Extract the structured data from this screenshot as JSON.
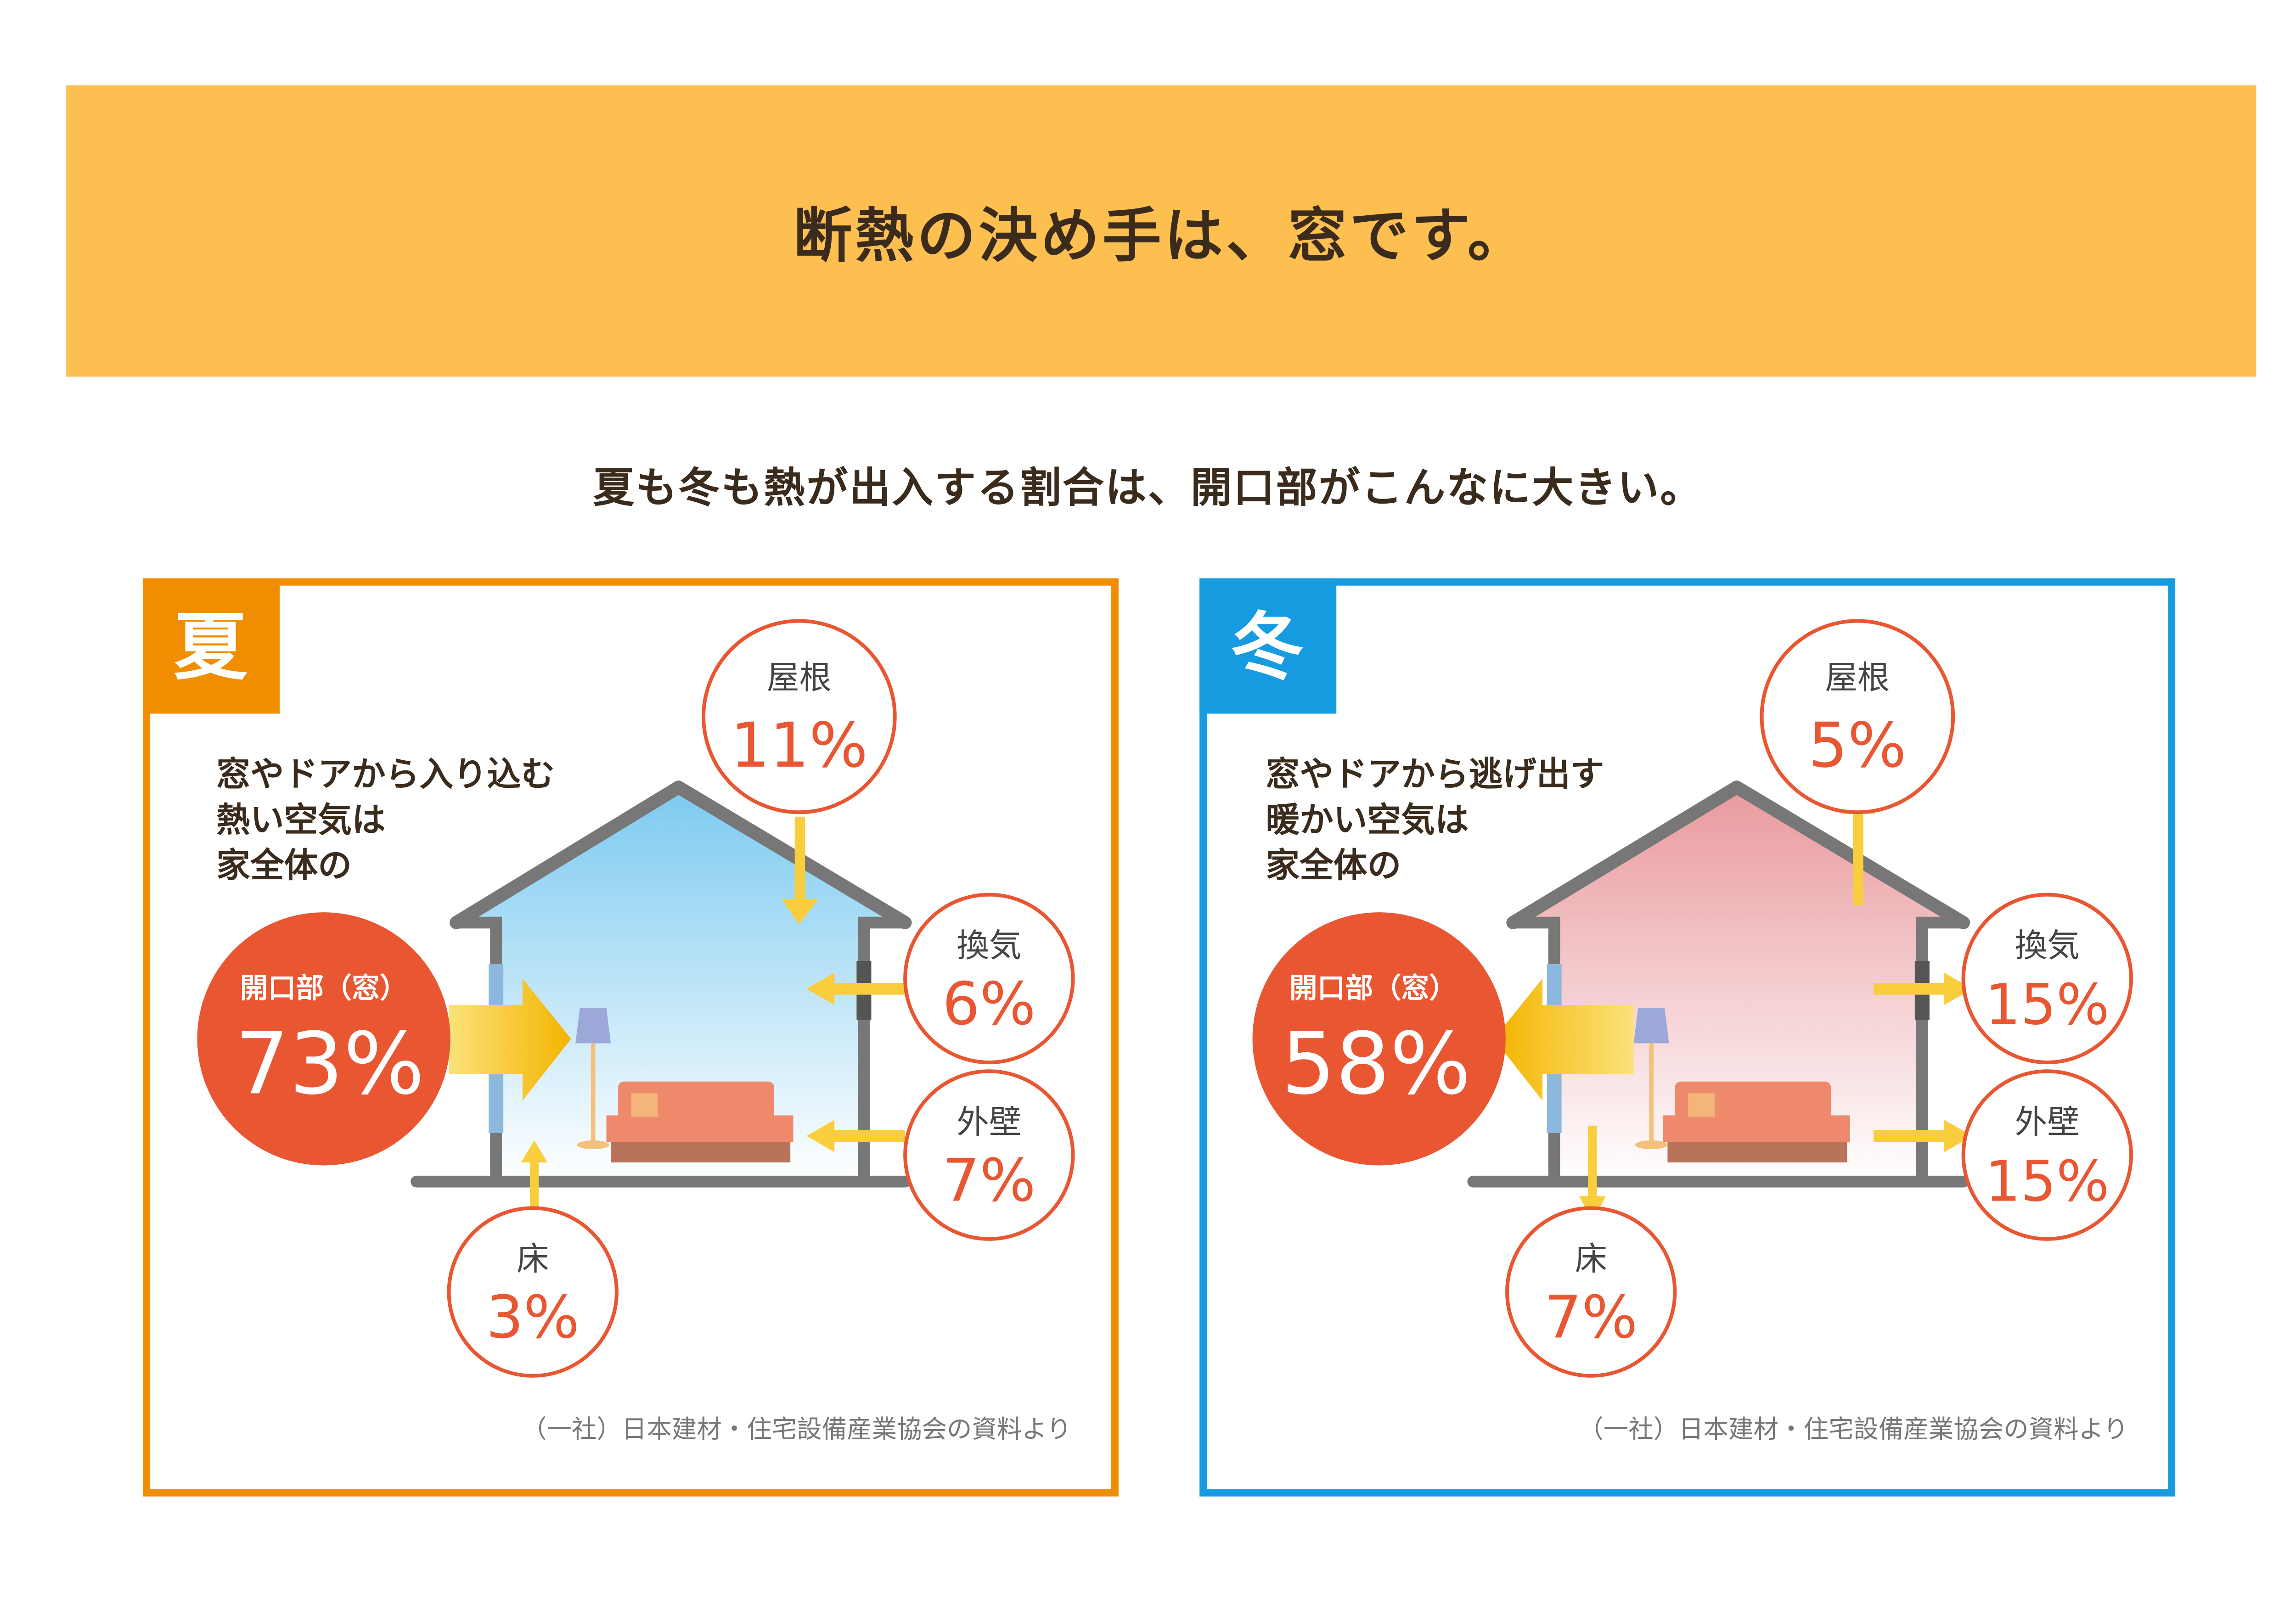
{
  "header": {
    "title": "断熱の決め手は、窓です。"
  },
  "subtitle": "夏も冬も熱が出入する割合は、開口部がこんなに大きい。",
  "colors": {
    "banner": "#FDBF50",
    "summer": "#F18D00",
    "winter": "#169BE0",
    "circle": "#E85632"
  },
  "panels": [
    {
      "season": "夏",
      "lines": [
        "窓やドアから入り込む",
        "熱い空気は",
        "家全体の"
      ],
      "main": {
        "label": "開口部（窓）",
        "value": "73%"
      },
      "roof": {
        "label": "屋根",
        "value": "11%"
      },
      "vent": {
        "label": "換気",
        "value": "6%"
      },
      "wall": {
        "label": "外壁",
        "value": "7%"
      },
      "floor": {
        "label": "床",
        "value": "3%"
      },
      "source": "（一社）日本建材・住宅設備産業協会の資料より"
    },
    {
      "season": "冬",
      "lines": [
        "窓やドアから逃げ出す",
        "暖かい空気は",
        "家全体の"
      ],
      "main": {
        "label": "開口部（窓）",
        "value": "58%"
      },
      "roof": {
        "label": "屋根",
        "value": "5%"
      },
      "vent": {
        "label": "換気",
        "value": "15%"
      },
      "wall": {
        "label": "外壁",
        "value": "15%"
      },
      "floor": {
        "label": "床",
        "value": "7%"
      },
      "source": "（一社）日本建材・住宅設備産業協会の資料より"
    }
  ]
}
